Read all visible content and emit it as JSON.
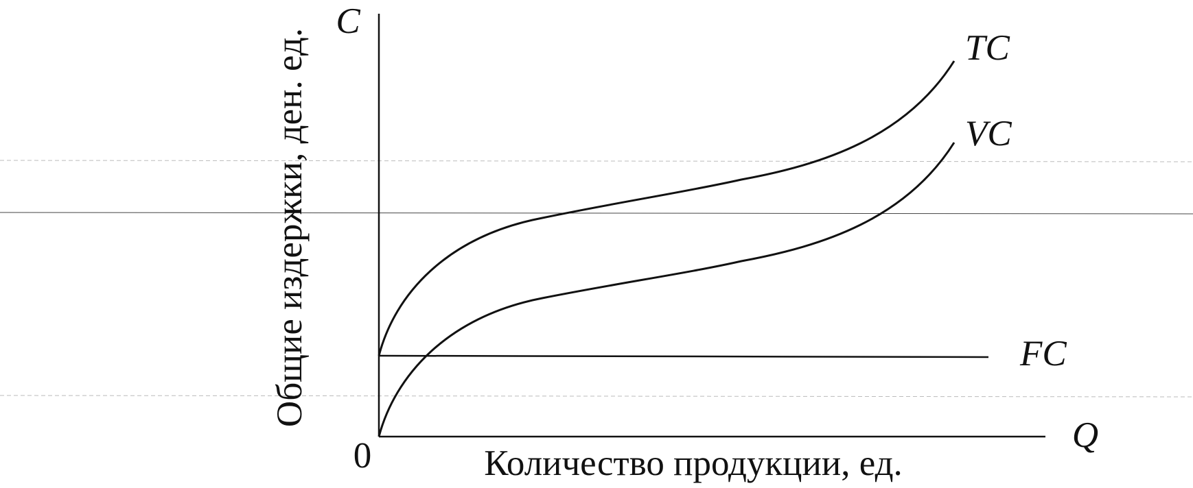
{
  "axes": {
    "y_symbol": "C",
    "x_symbol": "Q",
    "origin": "0",
    "y_label": "Общие издержки, ден. ед.",
    "x_label": "Количество продукции, ед."
  },
  "curves": [
    {
      "label": "TC"
    },
    {
      "label": "VC"
    },
    {
      "label": "FC"
    }
  ]
}
